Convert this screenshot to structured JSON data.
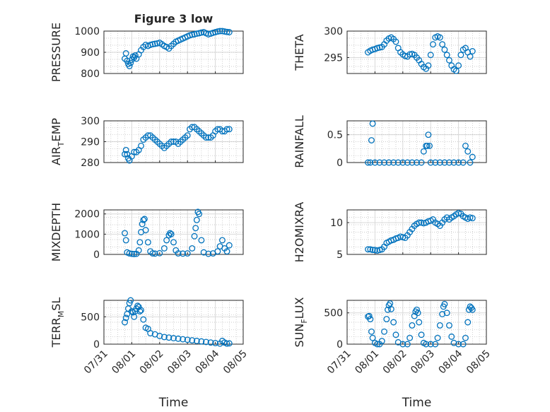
{
  "figure": {
    "title": "Figure 3 low"
  },
  "chart_data": [
    {
      "type": "scatter",
      "title": "Figure 3 low",
      "ylabel": "PRESSURE",
      "xlim": [
        "07/31",
        "08/05"
      ],
      "ylim": [
        800,
        1000
      ],
      "yticks": [
        800,
        900,
        1000
      ],
      "x_ticks": [],
      "xlabel": "",
      "marker_color": "#0072BD",
      "marker": "open-circle",
      "grid": "dotted",
      "x": [
        "07/31 18:00",
        "07/31 19:00",
        "07/31 20:00",
        "07/31 21:00",
        "07/31 22:00",
        "07/31 23:00",
        "08/01 00:00",
        "08/01 01:00",
        "08/01 02:00",
        "08/01 03:00",
        "08/01 04:00",
        "08/01 06:00",
        "08/01 08:00",
        "08/01 10:00",
        "08/01 12:00",
        "08/01 14:00",
        "08/01 16:00",
        "08/01 18:00",
        "08/01 20:00",
        "08/01 22:00",
        "08/02 00:00",
        "08/02 02:00",
        "08/02 04:00",
        "08/02 06:00",
        "08/02 08:00",
        "08/02 10:00",
        "08/02 12:00",
        "08/02 14:00",
        "08/02 16:00",
        "08/02 18:00",
        "08/02 20:00",
        "08/02 22:00",
        "08/03 00:00",
        "08/03 02:00",
        "08/03 04:00",
        "08/03 06:00",
        "08/03 08:00",
        "08/03 10:00",
        "08/03 12:00",
        "08/03 14:00",
        "08/03 16:00",
        "08/03 18:00",
        "08/03 20:00",
        "08/03 22:00",
        "08/04 00:00",
        "08/04 02:00",
        "08/04 04:00",
        "08/04 06:00",
        "08/04 08:00",
        "08/04 10:00",
        "08/04 12:00"
      ],
      "y": [
        870,
        895,
        860,
        845,
        835,
        850,
        865,
        880,
        875,
        885,
        870,
        890,
        910,
        925,
        935,
        930,
        935,
        938,
        940,
        942,
        945,
        938,
        930,
        925,
        918,
        930,
        940,
        950,
        955,
        960,
        965,
        970,
        975,
        980,
        983,
        985,
        988,
        990,
        993,
        995,
        990,
        985,
        988,
        992,
        995,
        998,
        1000,
        1000,
        998,
        996,
        995
      ]
    },
    {
      "type": "scatter",
      "ylabel": "THETA",
      "xlim": [
        "07/31",
        "08/05"
      ],
      "ylim": [
        292,
        300
      ],
      "yticks": [
        295,
        300
      ],
      "x_ticks": [],
      "xlabel": "",
      "marker_color": "#0072BD",
      "marker": "open-circle",
      "grid": "dotted",
      "x": [
        "07/31 18:00",
        "07/31 20:00",
        "07/31 22:00",
        "08/01 00:00",
        "08/01 02:00",
        "08/01 04:00",
        "08/01 06:00",
        "08/01 08:00",
        "08/01 10:00",
        "08/01 12:00",
        "08/01 14:00",
        "08/01 16:00",
        "08/01 18:00",
        "08/01 20:00",
        "08/01 22:00",
        "08/02 00:00",
        "08/02 02:00",
        "08/02 04:00",
        "08/02 06:00",
        "08/02 08:00",
        "08/02 10:00",
        "08/02 12:00",
        "08/02 14:00",
        "08/02 16:00",
        "08/02 18:00",
        "08/02 20:00",
        "08/02 22:00",
        "08/03 00:00",
        "08/03 02:00",
        "08/03 04:00",
        "08/03 06:00",
        "08/03 08:00",
        "08/03 10:00",
        "08/03 12:00",
        "08/03 14:00",
        "08/03 16:00",
        "08/03 18:00",
        "08/03 20:00",
        "08/03 22:00",
        "08/04 00:00",
        "08/04 02:00",
        "08/04 04:00",
        "08/04 06:00",
        "08/04 08:00",
        "08/04 10:00",
        "08/04 12:00"
      ],
      "y": [
        296.0,
        296.3,
        296.5,
        296.6,
        296.8,
        296.9,
        297.0,
        297.5,
        298.2,
        298.6,
        298.8,
        298.5,
        298.0,
        296.8,
        296.0,
        295.6,
        295.3,
        295.2,
        295.6,
        295.7,
        295.5,
        295.0,
        294.5,
        293.8,
        293.2,
        292.9,
        293.5,
        295.5,
        297.5,
        298.8,
        299.0,
        298.8,
        297.5,
        296.5,
        295.5,
        294.5,
        293.5,
        292.8,
        292.5,
        293.5,
        295.5,
        296.5,
        296.8,
        296.0,
        295.2,
        296.2
      ]
    },
    {
      "type": "scatter",
      "ylabel": "AIR_TEMP",
      "xlim": [
        "07/31",
        "08/05"
      ],
      "ylim": [
        280,
        300
      ],
      "yticks": [
        280,
        290,
        300
      ],
      "x_ticks": [],
      "xlabel": "",
      "marker_color": "#0072BD",
      "marker": "open-circle",
      "grid": "dotted",
      "x": [
        "07/31 18:00",
        "07/31 19:00",
        "07/31 20:00",
        "07/31 21:00",
        "07/31 22:00",
        "08/01 00:00",
        "08/01 02:00",
        "08/01 04:00",
        "08/01 06:00",
        "08/01 08:00",
        "08/01 10:00",
        "08/01 12:00",
        "08/01 14:00",
        "08/01 16:00",
        "08/01 18:00",
        "08/01 20:00",
        "08/01 22:00",
        "08/02 00:00",
        "08/02 02:00",
        "08/02 04:00",
        "08/02 06:00",
        "08/02 08:00",
        "08/02 10:00",
        "08/02 12:00",
        "08/02 14:00",
        "08/02 16:00",
        "08/02 18:00",
        "08/02 20:00",
        "08/02 22:00",
        "08/03 00:00",
        "08/03 02:00",
        "08/03 04:00",
        "08/03 06:00",
        "08/03 08:00",
        "08/03 10:00",
        "08/03 12:00",
        "08/03 14:00",
        "08/03 16:00",
        "08/03 18:00",
        "08/03 20:00",
        "08/03 22:00",
        "08/04 00:00",
        "08/04 02:00",
        "08/04 04:00",
        "08/04 06:00",
        "08/04 08:00",
        "08/04 10:00",
        "08/04 12:00"
      ],
      "y": [
        284,
        286,
        284,
        282,
        281,
        283,
        285,
        285,
        286,
        288,
        291,
        292,
        293,
        293,
        292,
        291,
        290,
        289,
        288,
        287,
        288,
        289,
        290,
        290,
        290,
        289,
        290,
        291,
        292,
        293,
        296,
        297,
        297,
        296,
        295,
        294,
        293,
        292,
        292,
        292,
        293,
        295,
        296,
        296,
        295,
        295,
        296,
        296
      ]
    },
    {
      "type": "scatter",
      "ylabel": "RAINFALL",
      "xlim": [
        "07/31",
        "08/05"
      ],
      "ylim": [
        0,
        0.75
      ],
      "yticks": [
        0,
        0.5
      ],
      "x_ticks": [],
      "xlabel": "",
      "marker_color": "#0072BD",
      "marker": "open-circle",
      "grid": "dotted",
      "x": [
        "07/31 18:00",
        "07/31 20:00",
        "07/31 21:00",
        "07/31 22:00",
        "08/01 00:00",
        "08/01 04:00",
        "08/01 08:00",
        "08/01 12:00",
        "08/01 16:00",
        "08/01 20:00",
        "08/02 00:00",
        "08/02 04:00",
        "08/02 08:00",
        "08/02 12:00",
        "08/02 16:00",
        "08/02 18:00",
        "08/02 20:00",
        "08/02 21:00",
        "08/02 22:00",
        "08/02 23:00",
        "08/03 00:00",
        "08/03 04:00",
        "08/03 08:00",
        "08/03 12:00",
        "08/03 16:00",
        "08/03 20:00",
        "08/04 00:00",
        "08/04 04:00",
        "08/04 06:00",
        "08/04 08:00",
        "08/04 10:00",
        "08/04 12:00"
      ],
      "y": [
        0,
        0,
        0.4,
        0.7,
        0,
        0,
        0,
        0,
        0,
        0,
        0,
        0,
        0,
        0,
        0,
        0.2,
        0.3,
        0.3,
        0.5,
        0.3,
        0,
        0,
        0,
        0,
        0,
        0,
        0,
        0,
        0.3,
        0.2,
        0,
        0.1
      ]
    },
    {
      "type": "scatter",
      "ylabel": "MIXDEPTH",
      "xlim": [
        "07/31",
        "08/05"
      ],
      "ylim": [
        0,
        2200
      ],
      "yticks": [
        0,
        1000,
        2000
      ],
      "x_ticks": [],
      "xlabel": "",
      "marker_color": "#0072BD",
      "marker": "open-circle",
      "grid": "dotted",
      "x": [
        "07/31 18:00",
        "07/31 19:00",
        "07/31 20:00",
        "07/31 22:00",
        "08/01 00:00",
        "08/01 02:00",
        "08/01 04:00",
        "08/01 06:00",
        "08/01 07:00",
        "08/01 08:00",
        "08/01 09:00",
        "08/01 10:00",
        "08/01 11:00",
        "08/01 12:00",
        "08/01 14:00",
        "08/01 16:00",
        "08/01 18:00",
        "08/01 20:00",
        "08/02 00:00",
        "08/02 04:00",
        "08/02 06:00",
        "08/02 08:00",
        "08/02 09:00",
        "08/02 10:00",
        "08/02 12:00",
        "08/02 14:00",
        "08/02 16:00",
        "08/02 20:00",
        "08/03 00:00",
        "08/03 04:00",
        "08/03 06:00",
        "08/03 07:00",
        "08/03 08:00",
        "08/03 09:00",
        "08/03 10:00",
        "08/03 12:00",
        "08/03 14:00",
        "08/03 18:00",
        "08/03 22:00",
        "08/04 02:00",
        "08/04 04:00",
        "08/04 06:00",
        "08/04 08:00",
        "08/04 10:00",
        "08/04 12:00"
      ],
      "y": [
        1050,
        700,
        100,
        50,
        30,
        20,
        30,
        200,
        600,
        1100,
        1500,
        1700,
        1750,
        1200,
        600,
        150,
        50,
        40,
        60,
        300,
        700,
        950,
        1050,
        1000,
        600,
        200,
        50,
        40,
        50,
        300,
        900,
        1300,
        1700,
        2100,
        2000,
        700,
        100,
        30,
        50,
        150,
        400,
        700,
        300,
        150,
        450
      ]
    },
    {
      "type": "scatter",
      "ylabel": "H2OMIXRA",
      "xlim": [
        "07/31",
        "08/05"
      ],
      "ylim": [
        5,
        12
      ],
      "yticks": [
        5,
        10
      ],
      "x_ticks": [],
      "xlabel": "",
      "marker_color": "#0072BD",
      "marker": "open-circle",
      "grid": "dotted",
      "x": [
        "07/31 18:00",
        "07/31 20:00",
        "07/31 22:00",
        "08/01 00:00",
        "08/01 02:00",
        "08/01 04:00",
        "08/01 06:00",
        "08/01 08:00",
        "08/01 10:00",
        "08/01 12:00",
        "08/01 14:00",
        "08/01 16:00",
        "08/01 18:00",
        "08/01 20:00",
        "08/01 22:00",
        "08/02 00:00",
        "08/02 02:00",
        "08/02 04:00",
        "08/02 06:00",
        "08/02 08:00",
        "08/02 10:00",
        "08/02 12:00",
        "08/02 14:00",
        "08/02 16:00",
        "08/02 18:00",
        "08/02 20:00",
        "08/02 22:00",
        "08/03 00:00",
        "08/03 02:00",
        "08/03 04:00",
        "08/03 06:00",
        "08/03 08:00",
        "08/03 10:00",
        "08/03 12:00",
        "08/03 14:00",
        "08/03 16:00",
        "08/03 18:00",
        "08/03 20:00",
        "08/03 22:00",
        "08/04 00:00",
        "08/04 02:00",
        "08/04 04:00",
        "08/04 06:00",
        "08/04 08:00",
        "08/04 10:00",
        "08/04 12:00"
      ],
      "y": [
        5.8,
        5.8,
        5.7,
        5.7,
        5.6,
        5.7,
        5.8,
        6.2,
        6.8,
        7.0,
        7.2,
        7.3,
        7.5,
        7.6,
        7.8,
        7.7,
        7.6,
        8.0,
        8.5,
        9.0,
        9.5,
        9.8,
        10.0,
        10.0,
        9.9,
        10.0,
        10.2,
        10.3,
        10.5,
        10.0,
        9.8,
        9.5,
        10.0,
        10.5,
        10.8,
        10.5,
        10.8,
        11.0,
        11.3,
        11.5,
        11.4,
        11.0,
        10.8,
        10.6,
        10.8,
        10.7
      ]
    },
    {
      "type": "scatter",
      "ylabel": "TERR_MSL",
      "xlim": [
        "07/31",
        "08/05"
      ],
      "ylim": [
        0,
        800
      ],
      "yticks": [
        0,
        500
      ],
      "x_ticks": [
        "07/31",
        "08/01",
        "08/02",
        "08/03",
        "08/04",
        "08/05"
      ],
      "xlabel": "Time",
      "marker_color": "#0072BD",
      "marker": "open-circle",
      "grid": "dotted",
      "x": [
        "07/31 18:00",
        "07/31 19:00",
        "07/31 20:00",
        "07/31 21:00",
        "07/31 22:00",
        "07/31 23:00",
        "08/01 00:00",
        "08/01 01:00",
        "08/01 02:00",
        "08/01 03:00",
        "08/01 04:00",
        "08/01 05:00",
        "08/01 06:00",
        "08/01 07:00",
        "08/01 08:00",
        "08/01 10:00",
        "08/01 12:00",
        "08/01 14:00",
        "08/01 16:00",
        "08/01 20:00",
        "08/02 00:00",
        "08/02 04:00",
        "08/02 08:00",
        "08/02 12:00",
        "08/02 16:00",
        "08/02 20:00",
        "08/03 00:00",
        "08/03 04:00",
        "08/03 08:00",
        "08/03 12:00",
        "08/03 16:00",
        "08/03 20:00",
        "08/04 00:00",
        "08/04 04:00",
        "08/04 06:00",
        "08/04 08:00",
        "08/04 10:00",
        "08/04 12:00"
      ],
      "y": [
        400,
        480,
        550,
        650,
        750,
        800,
        600,
        580,
        500,
        600,
        650,
        700,
        680,
        600,
        620,
        450,
        300,
        280,
        200,
        180,
        150,
        130,
        120,
        110,
        100,
        90,
        80,
        70,
        60,
        50,
        40,
        30,
        20,
        10,
        60,
        30,
        10,
        15
      ]
    },
    {
      "type": "scatter",
      "ylabel": "SUN_FLUX",
      "xlim": [
        "07/31",
        "08/05"
      ],
      "ylim": [
        0,
        700
      ],
      "yticks": [
        0,
        500
      ],
      "x_ticks": [
        "07/31",
        "08/01",
        "08/02",
        "08/03",
        "08/04",
        "08/05"
      ],
      "xlabel": "Time",
      "marker_color": "#0072BD",
      "marker": "open-circle",
      "grid": "dotted",
      "x": [
        "07/31 18:00",
        "07/31 19:00",
        "07/31 20:00",
        "07/31 21:00",
        "07/31 22:00",
        "08/01 00:00",
        "08/01 02:00",
        "08/01 04:00",
        "08/01 06:00",
        "08/01 08:00",
        "08/01 10:00",
        "08/01 11:00",
        "08/01 12:00",
        "08/01 13:00",
        "08/01 14:00",
        "08/01 16:00",
        "08/01 18:00",
        "08/01 20:00",
        "08/02 00:00",
        "08/02 04:00",
        "08/02 06:00",
        "08/02 08:00",
        "08/02 10:00",
        "08/02 11:00",
        "08/02 12:00",
        "08/02 13:00",
        "08/02 14:00",
        "08/02 16:00",
        "08/02 18:00",
        "08/02 20:00",
        "08/03 00:00",
        "08/03 04:00",
        "08/03 06:00",
        "08/03 08:00",
        "08/03 10:00",
        "08/03 11:00",
        "08/03 12:00",
        "08/03 14:00",
        "08/03 16:00",
        "08/03 18:00",
        "08/03 20:00",
        "08/04 00:00",
        "08/04 04:00",
        "08/04 06:00",
        "08/04 08:00",
        "08/04 09:00",
        "08/04 10:00",
        "08/04 11:00",
        "08/04 12:00"
      ],
      "y": [
        440,
        450,
        400,
        200,
        100,
        20,
        0,
        0,
        50,
        200,
        400,
        550,
        620,
        650,
        560,
        350,
        150,
        30,
        0,
        0,
        100,
        300,
        450,
        520,
        550,
        500,
        350,
        150,
        20,
        0,
        0,
        0,
        100,
        300,
        480,
        600,
        640,
        500,
        300,
        120,
        20,
        0,
        0,
        100,
        350,
        550,
        600,
        580,
        550
      ]
    }
  ]
}
